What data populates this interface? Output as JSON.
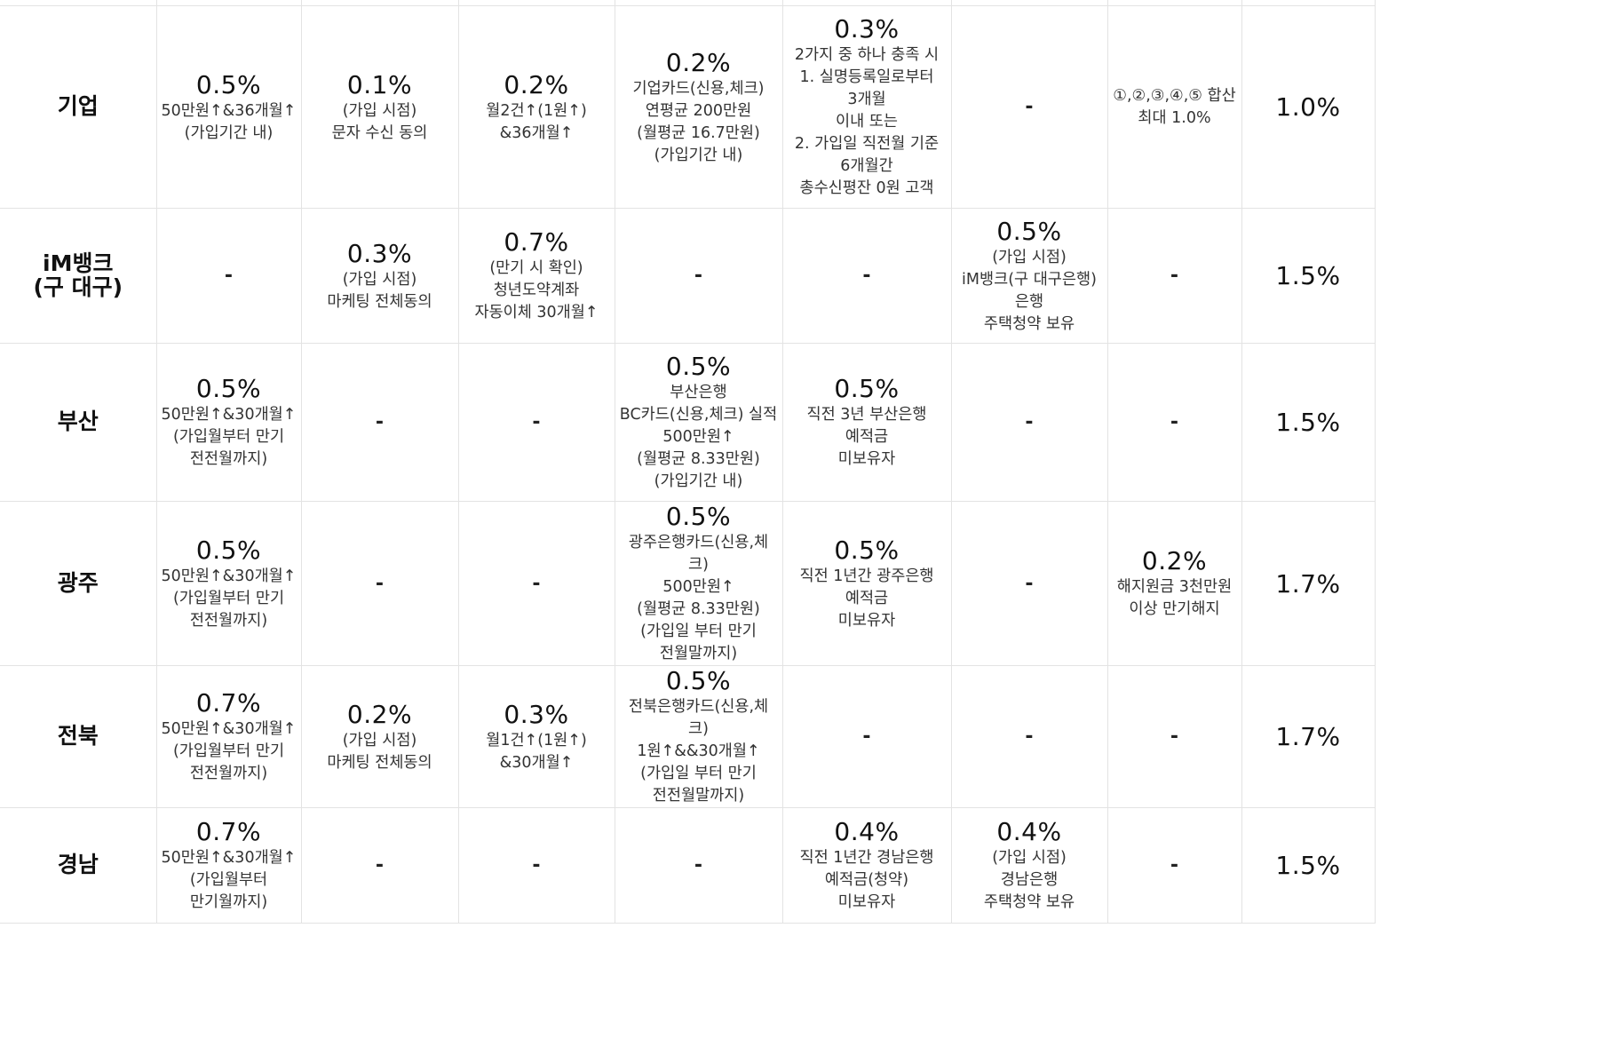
{
  "rows": [
    {
      "bank": "기업",
      "cells": [
        {
          "rate": "0.5%",
          "desc": "50만원↑&36개월↑\n(가입기간 내)"
        },
        {
          "rate": "0.1%",
          "desc": "(가입 시점)\n문자 수신 동의"
        },
        {
          "rate": "0.2%",
          "desc": "월2건↑(1원↑)\n&36개월↑"
        },
        {
          "rate": "0.2%",
          "desc": "기업카드(신용,체크)\n연평균 200만원\n(월평균 16.7만원)\n(가입기간 내)"
        },
        {
          "rate": "0.3%",
          "desc": "2가지 중 하나 충족 시\n1. 실명등록일로부터\n3개월\n이내 또는\n2. 가입일 직전월 기준\n6개월간\n총수신평잔 0원 고객"
        },
        {
          "rate": "",
          "desc": "-"
        },
        {
          "rate": "",
          "desc": "①,②,③,④,⑤ 합산\n최대 1.0%"
        }
      ],
      "total": "1.0%"
    },
    {
      "bank": "iM뱅크\n(구 대구)",
      "cells": [
        {
          "rate": "",
          "desc": "-"
        },
        {
          "rate": "0.3%",
          "desc": "(가입 시점)\n마케팅 전체동의"
        },
        {
          "rate": "0.7%",
          "desc": "(만기 시 확인)\n청년도약계좌\n자동이체 30개월↑"
        },
        {
          "rate": "",
          "desc": "-"
        },
        {
          "rate": "",
          "desc": "-"
        },
        {
          "rate": "0.5%",
          "desc": "(가입 시점)\niM뱅크(구 대구은행)\n은행\n주택청약 보유"
        },
        {
          "rate": "",
          "desc": "-"
        }
      ],
      "total": "1.5%"
    },
    {
      "bank": "부산",
      "cells": [
        {
          "rate": "0.5%",
          "desc": "50만원↑&30개월↑\n(가입월부터 만기\n전전월까지)"
        },
        {
          "rate": "",
          "desc": "-"
        },
        {
          "rate": "",
          "desc": "-"
        },
        {
          "rate": "0.5%",
          "desc": "부산은행\nBC카드(신용,체크) 실적\n500만원↑\n(월평균 8.33만원)\n(가입기간 내)"
        },
        {
          "rate": "0.5%",
          "desc": "직전 3년 부산은행\n예적금\n미보유자"
        },
        {
          "rate": "",
          "desc": "-"
        },
        {
          "rate": "",
          "desc": "-"
        }
      ],
      "total": "1.5%"
    },
    {
      "bank": "광주",
      "cells": [
        {
          "rate": "0.5%",
          "desc": "50만원↑&30개월↑\n(가입월부터 만기\n전전월까지)"
        },
        {
          "rate": "",
          "desc": "-"
        },
        {
          "rate": "",
          "desc": "-"
        },
        {
          "rate": "0.5%",
          "desc": "광주은행카드(신용,체크)\n500만원↑\n(월평균 8.33만원)\n(가입일 부터 만기\n전월말까지)"
        },
        {
          "rate": "0.5%",
          "desc": "직전 1년간 광주은행\n예적금\n미보유자"
        },
        {
          "rate": "",
          "desc": "-"
        },
        {
          "rate": "0.2%",
          "desc": "해지원금 3천만원\n이상 만기해지"
        }
      ],
      "total": "1.7%"
    },
    {
      "bank": "전북",
      "cells": [
        {
          "rate": "0.7%",
          "desc": "50만원↑&30개월↑\n(가입월부터 만기\n전전월까지)"
        },
        {
          "rate": "0.2%",
          "desc": "(가입 시점)\n마케팅 전체동의"
        },
        {
          "rate": "0.3%",
          "desc": "월1건↑(1원↑)\n&30개월↑"
        },
        {
          "rate": "0.5%",
          "desc": "전북은행카드(신용,체크)\n1원↑&&30개월↑\n(가입일 부터 만기\n전전월말까지)"
        },
        {
          "rate": "",
          "desc": "-"
        },
        {
          "rate": "",
          "desc": "-"
        },
        {
          "rate": "",
          "desc": "-"
        }
      ],
      "total": "1.7%"
    },
    {
      "bank": "경남",
      "cells": [
        {
          "rate": "0.7%",
          "desc": "50만원↑&30개월↑\n(가입월부터\n만기월까지)"
        },
        {
          "rate": "",
          "desc": "-"
        },
        {
          "rate": "",
          "desc": "-"
        },
        {
          "rate": "",
          "desc": "-"
        },
        {
          "rate": "0.4%",
          "desc": "직전 1년간 경남은행\n예적금(청약)\n미보유자"
        },
        {
          "rate": "0.4%",
          "desc": "(가입 시점)\n경남은행\n주택청약 보유"
        },
        {
          "rate": "",
          "desc": "-"
        }
      ],
      "total": "1.5%"
    }
  ]
}
